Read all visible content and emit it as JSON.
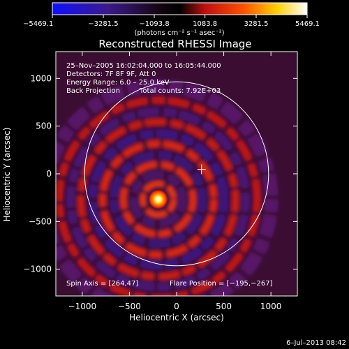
{
  "chart_data": {
    "type": "heatmap",
    "title": "Reconstructed RHESSI Image",
    "xlabel": "Heliocentric X (arcsec)",
    "ylabel": "Heliocentric Y (arcsec)",
    "xlim": [
      -1280,
      1280
    ],
    "ylim": [
      -1280,
      1280
    ],
    "x_ticks": [
      -1000,
      -500,
      0,
      500,
      1000
    ],
    "x_tick_labels": [
      "−1000",
      "−500",
      "0",
      "500",
      "1000"
    ],
    "y_ticks": [
      1000,
      500,
      0,
      -500,
      -1000
    ],
    "y_tick_labels": [
      "1000",
      "500",
      "0",
      "−500",
      "−1000"
    ],
    "colorbar": {
      "ticks": [
        -5469.1,
        -3281.5,
        -1093.8,
        1083.8,
        3281.5,
        5469.1
      ],
      "tick_labels": [
        "−5469.1",
        "−3281.5",
        "−1093.8",
        "1083.8",
        "3281.5",
        "5469.1"
      ],
      "unit_label": "(photons cm⁻² s⁻¹ asec⁻²)",
      "range": [
        -5469.1,
        5469.1
      ],
      "colors": [
        "#0000ff",
        "#000000",
        "#ff0000",
        "#ffff00",
        "#ffffff"
      ]
    },
    "annotations": {
      "time_range": "25–Nov–2005 16:02:04.000 to 16:05:44.000",
      "detectors": "Detectors: 7F 8F 9F, Att 0",
      "energy": "Energy Range: 6.0 – 25.0 keV",
      "method": "Back Projection",
      "counts": "Total counts: 7.92E+03",
      "spin_axis": "Spin Axis = [264,47]",
      "flare_position": "Flare Position = [−195,−267]"
    },
    "source": {
      "x": -195,
      "y": -267
    },
    "spin_axis": {
      "x": 264,
      "y": 47
    },
    "solar_disk_radius": 975,
    "footer_timestamp": "6–Jul–2013 08:42"
  }
}
